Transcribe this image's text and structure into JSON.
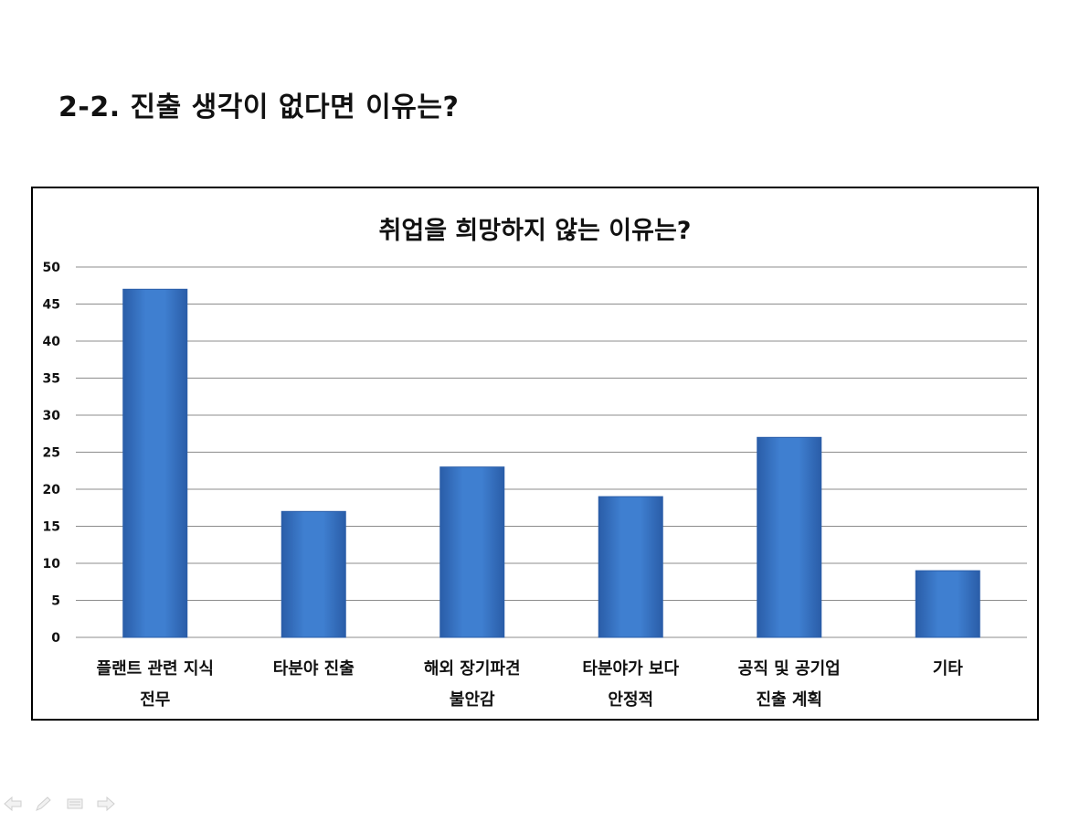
{
  "slide": {
    "title": "2-2. 진출 생각이 없다면 이유는?"
  },
  "colors": {
    "bar": "#3f7fd0",
    "bar_dark": "#2a5da8",
    "grid": "#8c8c8c",
    "frame": "#000000"
  },
  "chart_data": {
    "type": "bar",
    "title": "취업을 희망하지 않는 이유는?",
    "xlabel": "",
    "ylabel": "",
    "categories": [
      [
        "플랜트 관련 지식",
        "전무"
      ],
      [
        "타분야 진출"
      ],
      [
        "해외 장기파견",
        "불안감"
      ],
      [
        "타분야가 보다",
        "안정적"
      ],
      [
        "공직 및 공기업",
        "진출 계획"
      ],
      [
        "기타"
      ]
    ],
    "values": [
      47,
      17,
      23,
      19,
      27,
      9
    ],
    "ylim": [
      0,
      50
    ],
    "yticks": [
      0,
      5,
      10,
      15,
      20,
      25,
      30,
      35,
      40,
      45,
      50
    ],
    "grid": true,
    "legend": "none"
  },
  "nav": {
    "icons": [
      "prev-arrow-icon",
      "pen-icon",
      "menu-icon",
      "next-arrow-icon"
    ]
  }
}
